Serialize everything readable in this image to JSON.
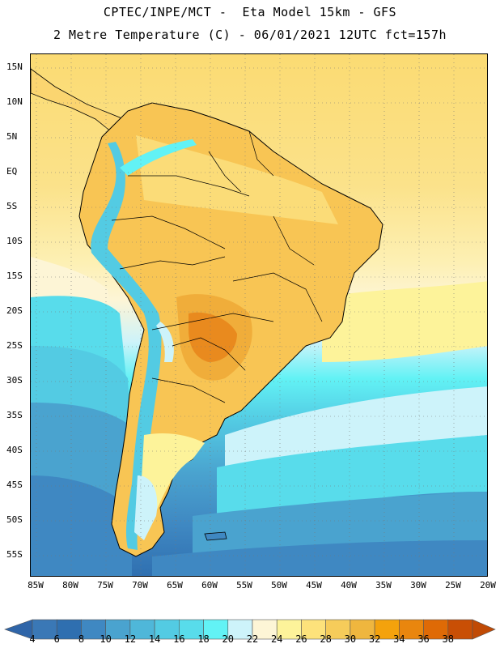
{
  "title": {
    "line1": "CPTEC/INPE/MCT -  Eta Model 15km - GFS",
    "line2": "2 Metre Temperature (C) - 06/01/2021 12UTC fct=157h"
  },
  "map": {
    "lat_labels": [
      "15N",
      "10N",
      "5N",
      "EQ",
      "5S",
      "10S",
      "15S",
      "20S",
      "25S",
      "30S",
      "35S",
      "40S",
      "45S",
      "50S",
      "55S"
    ],
    "lon_labels": [
      "85W",
      "80W",
      "75W",
      "70W",
      "65W",
      "60W",
      "55W",
      "50W",
      "45W",
      "40W",
      "35W",
      "30W",
      "25W",
      "20W"
    ],
    "lat_range": [
      -57,
      18
    ],
    "lon_range": [
      -86,
      -20
    ],
    "gridlines": "dotted",
    "ocean_base_color": "#fbe28a"
  },
  "colorbar": {
    "labels": [
      "4",
      "6",
      "8",
      "10",
      "12",
      "14",
      "16",
      "18",
      "20",
      "22",
      "24",
      "26",
      "28",
      "30",
      "32",
      "34",
      "36",
      "38"
    ],
    "colors": [
      "#3a78b6",
      "#2f6fb0",
      "#3f88c2",
      "#4aa3cf",
      "#4fb7d9",
      "#53cbe3",
      "#58dceb",
      "#62f2f5",
      "#cdf3fa",
      "#fdf5d6",
      "#fdf39a",
      "#fde27b",
      "#f6cc5a",
      "#efb63e",
      "#f4a20c",
      "#e9860e",
      "#df6a06",
      "#c94f05"
    ],
    "low_end_color": "#2f65a8",
    "high_end_color": "#c04a05"
  }
}
